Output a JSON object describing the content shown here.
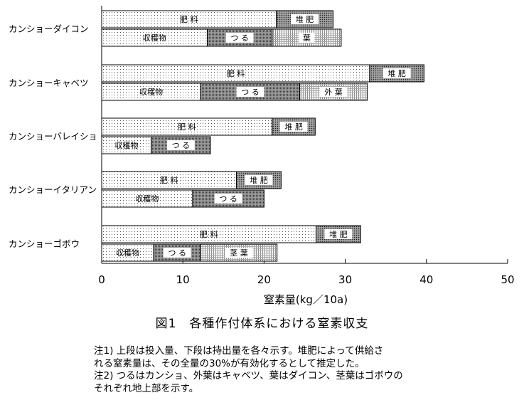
{
  "chart_data": {
    "type": "bar",
    "orientation": "horizontal-stacked",
    "xlabel": "窒素量(kg／10a)",
    "xlim": [
      0,
      50
    ],
    "xticks": [
      0,
      10,
      20,
      30,
      40,
      50
    ],
    "grid": false,
    "legend": "none (segment labels inside bars)",
    "groups": [
      {
        "name": "カンショーダイコン",
        "input": [
          {
            "label": "肥 料",
            "value": 21.5,
            "pattern": "dots"
          },
          {
            "label": "堆 肥",
            "value": 7.0,
            "pattern": "grid"
          }
        ],
        "output": [
          {
            "label": "収穫物",
            "value": 13.0,
            "pattern": "dots"
          },
          {
            "label": "つ る",
            "value": 8.0,
            "pattern": "dense"
          },
          {
            "label": "葉",
            "value": 8.5,
            "pattern": "stripes"
          }
        ]
      },
      {
        "name": "カンショーキャベツ",
        "input": [
          {
            "label": "肥 料",
            "value": 33.0,
            "pattern": "dots"
          },
          {
            "label": "堆 肥",
            "value": 6.7,
            "pattern": "grid"
          }
        ],
        "output": [
          {
            "label": "収穫物",
            "value": 12.2,
            "pattern": "dots"
          },
          {
            "label": "つ る",
            "value": 12.2,
            "pattern": "dense"
          },
          {
            "label": "外 葉",
            "value": 8.3,
            "pattern": "stripes"
          }
        ]
      },
      {
        "name": "カンショーバレイショ",
        "input": [
          {
            "label": "肥 料",
            "value": 21.0,
            "pattern": "dots"
          },
          {
            "label": "堆 肥",
            "value": 5.3,
            "pattern": "grid"
          }
        ],
        "output": [
          {
            "label": "収穫物",
            "value": 6.1,
            "pattern": "dots"
          },
          {
            "label": "つ る",
            "value": 7.3,
            "pattern": "dense"
          }
        ]
      },
      {
        "name": "カンショーイタリアン",
        "input": [
          {
            "label": "肥 料",
            "value": 16.6,
            "pattern": "dots"
          },
          {
            "label": "堆 肥",
            "value": 5.5,
            "pattern": "grid"
          }
        ],
        "output": [
          {
            "label": "収穫物",
            "value": 11.2,
            "pattern": "dots"
          },
          {
            "label": "つ る",
            "value": 8.8,
            "pattern": "dense"
          }
        ]
      },
      {
        "name": "カンショーゴボウ",
        "input": [
          {
            "label": "肥 料",
            "value": 26.4,
            "pattern": "dots"
          },
          {
            "label": "堆 肥",
            "value": 5.5,
            "pattern": "grid"
          }
        ],
        "output": [
          {
            "label": "収穫物",
            "value": 6.4,
            "pattern": "dots"
          },
          {
            "label": "つ る",
            "value": 5.8,
            "pattern": "dense"
          },
          {
            "label": "茎 葉",
            "value": 9.4,
            "pattern": "stripes"
          }
        ]
      }
    ]
  },
  "figure": {
    "caption": "図1　各種作付体系における窒素収支"
  },
  "notes": [
    "注1) 上段は投入量、下段は持出量を各々示す。堆肥によって供給さ",
    "れる窒素量は、その全量の30%が有効化するとして推定した。",
    "注2) つるはカンショ、外葉はキャベツ、葉はダイコン、茎葉はゴボウの",
    "それぞれ地上部を示す。"
  ]
}
